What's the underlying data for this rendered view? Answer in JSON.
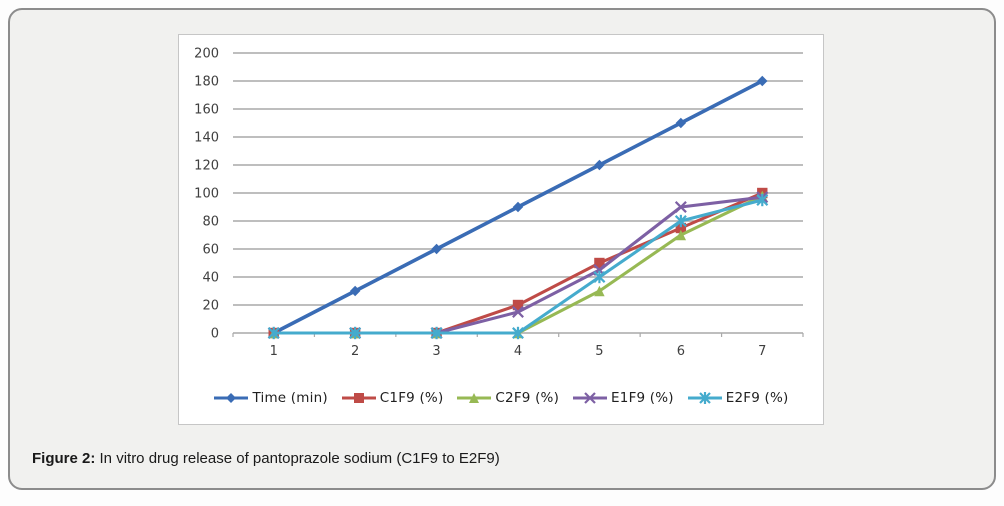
{
  "caption": {
    "label": "Figure 2:",
    "text": " In vitro drug release of pantoprazole sodium (C1F9 to E2F9)"
  },
  "palette": {
    "grid": "#a9a9a9",
    "chart_border": "#c6c6c6",
    "frame_border": "#8c8c8c",
    "frame_bg": "#f1f1ef"
  },
  "chart_data": {
    "type": "line",
    "title": "",
    "xlabel": "",
    "ylabel": "",
    "categories": [
      1,
      2,
      3,
      4,
      5,
      6,
      7
    ],
    "series": [
      {
        "name": "Time (min)",
        "color": "#3A6CB5",
        "marker": "diamond",
        "values": [
          0,
          30,
          60,
          90,
          120,
          150,
          180
        ]
      },
      {
        "name": "C1F9 (%)",
        "color": "#BF4B47",
        "marker": "square",
        "values": [
          0,
          0,
          0,
          20,
          50,
          75,
          100
        ]
      },
      {
        "name": "C2F9 (%)",
        "color": "#97B954",
        "marker": "triangle",
        "values": [
          0,
          0,
          0,
          0,
          30,
          70,
          98
        ]
      },
      {
        "name": "E1F9 (%)",
        "color": "#7D60A4",
        "marker": "x",
        "values": [
          0,
          0,
          0,
          15,
          45,
          90,
          97
        ]
      },
      {
        "name": "E2F9 (%)",
        "color": "#45ABCD",
        "marker": "star",
        "values": [
          0,
          0,
          0,
          0,
          40,
          80,
          95
        ]
      }
    ],
    "ylim": [
      0,
      200
    ],
    "ytick_step": 20,
    "grid": true,
    "legend_position": "bottom"
  }
}
